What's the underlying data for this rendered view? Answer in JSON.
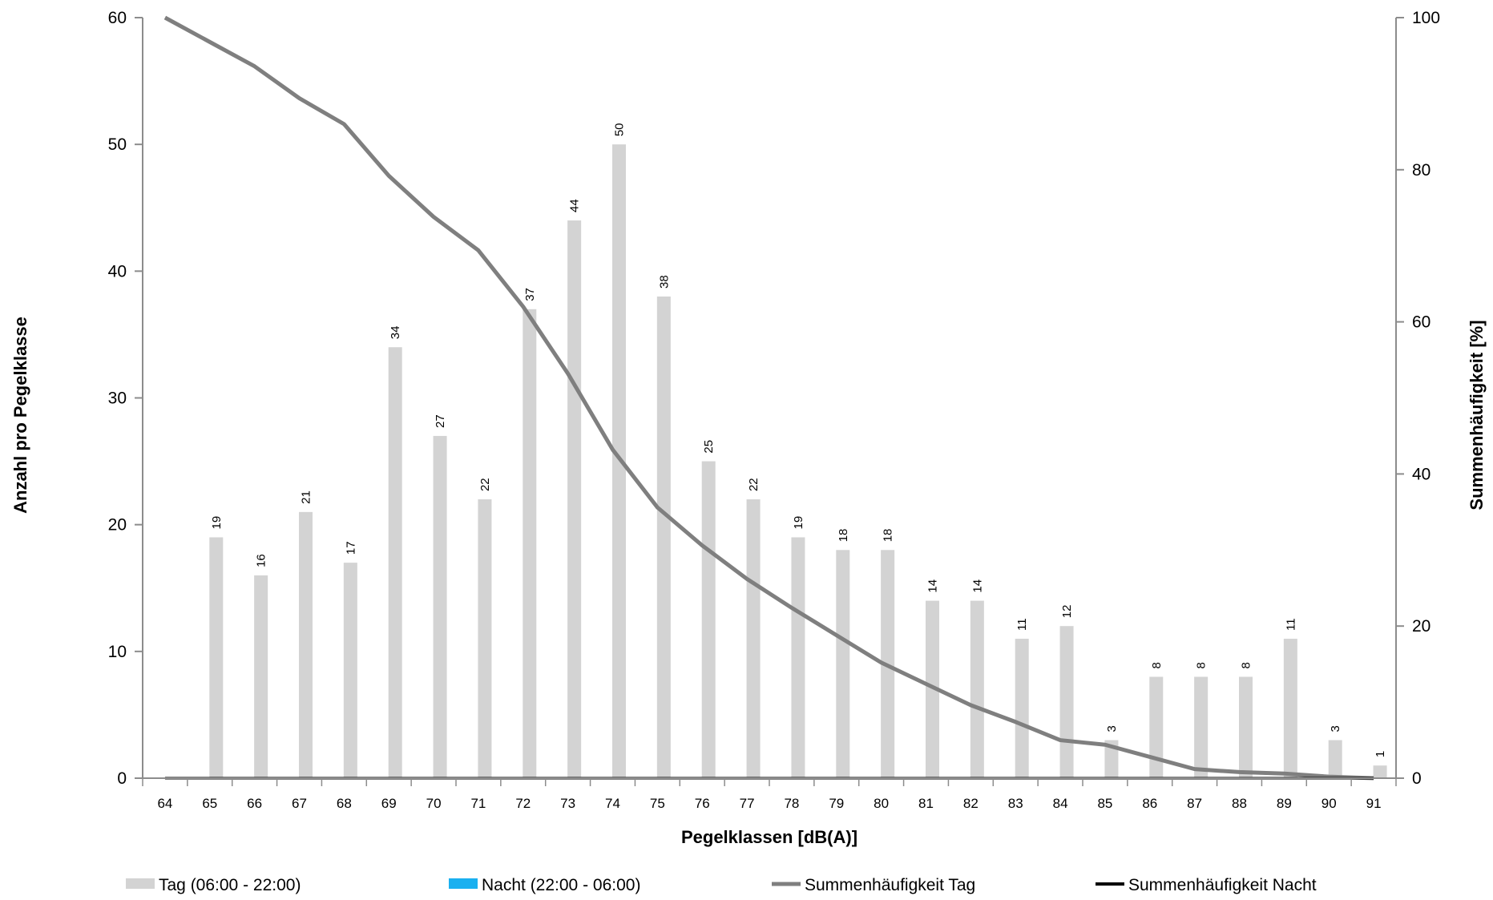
{
  "chart_data": {
    "type": "bar",
    "categories": [
      "64",
      "65",
      "66",
      "67",
      "68",
      "69",
      "70",
      "71",
      "72",
      "73",
      "74",
      "75",
      "76",
      "77",
      "78",
      "79",
      "80",
      "81",
      "82",
      "83",
      "84",
      "85",
      "86",
      "87",
      "88",
      "89",
      "90",
      "91"
    ],
    "series": [
      {
        "name": "Tag (06:00 - 22:00)",
        "type": "bar",
        "axis": "left",
        "color": "#d3d3d3",
        "values": [
          null,
          19,
          16,
          21,
          17,
          34,
          27,
          22,
          37,
          44,
          50,
          38,
          25,
          22,
          19,
          18,
          18,
          14,
          14,
          11,
          12,
          3,
          8,
          8,
          8,
          11,
          3,
          1
        ]
      },
      {
        "name": "Nacht (22:00 - 06:00)",
        "type": "bar",
        "axis": "left",
        "color": "#1ab0f0",
        "values": [
          0,
          0,
          0,
          0,
          0,
          0,
          0,
          0,
          0,
          0,
          0,
          0,
          0,
          0,
          0,
          0,
          0,
          0,
          0,
          0,
          0,
          0,
          0,
          0,
          0,
          0,
          0,
          0
        ]
      },
      {
        "name": "Summenhäufigkeit Tag",
        "type": "line",
        "axis": "right",
        "color": "#7f7f7f",
        "values": [
          100,
          96.8,
          93.6,
          89.4,
          86.0,
          79.2,
          73.8,
          69.4,
          62.0,
          53.2,
          43.2,
          35.6,
          30.6,
          26.2,
          22.4,
          18.8,
          15.2,
          12.4,
          9.6,
          7.4,
          5.0,
          4.4,
          2.8,
          1.2,
          0.8,
          0.6,
          0.2,
          0.0
        ]
      },
      {
        "name": "Summenhäufigkeit Nacht",
        "type": "line",
        "axis": "right",
        "color": "#000000",
        "values": [
          0,
          0,
          0,
          0,
          0,
          0,
          0,
          0,
          0,
          0,
          0,
          0,
          0,
          0,
          0,
          0,
          0,
          0,
          0,
          0,
          0,
          0,
          0,
          0,
          0,
          0,
          0,
          0
        ]
      }
    ],
    "data_labels": [
      "",
      "19",
      "16",
      "21",
      "17",
      "34",
      "27",
      "22",
      "37",
      "44",
      "50",
      "38",
      "25",
      "22",
      "19",
      "18",
      "18",
      "14",
      "14",
      "11",
      "12",
      "3",
      "8",
      "8",
      "8",
      "11",
      "3",
      "1"
    ],
    "xlabel": "Pegelklassen [dB(A)]",
    "ylabel": "Anzahl pro Pegelklasse",
    "y2label": "Summenhäufigkeit [%]",
    "ylim": [
      0,
      60
    ],
    "y2lim": [
      0,
      100
    ],
    "yticks": [
      "0",
      "10",
      "20",
      "30",
      "40",
      "50",
      "60"
    ],
    "y2ticks": [
      "0",
      "20",
      "40",
      "60",
      "80",
      "100"
    ],
    "grid": false,
    "legend_position": "bottom"
  }
}
